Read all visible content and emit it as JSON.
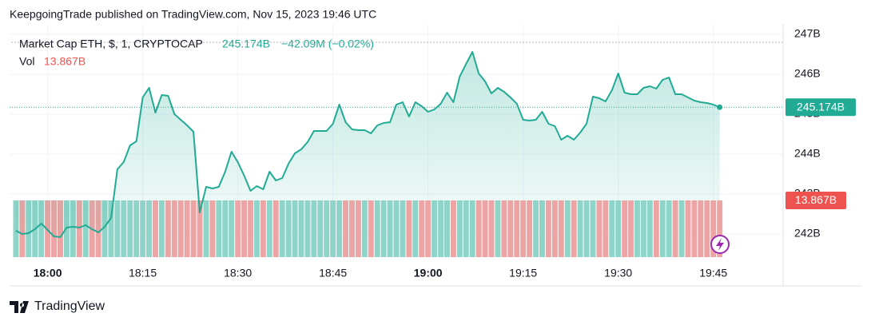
{
  "header": "KeepgoingTrade published on TradingView.com, Nov 15, 2023 19:46 UTC",
  "footer": "TradingView",
  "chart_data": {
    "type": "area",
    "title": "Market Cap ETH, $, 1, CRYPTOCAP",
    "last_label": "245.174B",
    "change_label": "−42.09M (−0.02%)",
    "color": "#22ab94",
    "grid": true,
    "x": [
      "17:55",
      "17:56",
      "17:57",
      "17:58",
      "17:59",
      "18:00",
      "18:01",
      "18:02",
      "18:03",
      "18:04",
      "18:05",
      "18:06",
      "18:07",
      "18:08",
      "18:09",
      "18:10",
      "18:11",
      "18:12",
      "18:13",
      "18:14",
      "18:15",
      "18:16",
      "18:17",
      "18:18",
      "18:19",
      "18:20",
      "18:21",
      "18:22",
      "18:23",
      "18:24",
      "18:25",
      "18:26",
      "18:27",
      "18:28",
      "18:29",
      "18:30",
      "18:31",
      "18:32",
      "18:33",
      "18:34",
      "18:35",
      "18:36",
      "18:37",
      "18:38",
      "18:39",
      "18:40",
      "18:41",
      "18:42",
      "18:43",
      "18:44",
      "18:45",
      "18:46",
      "18:47",
      "18:48",
      "18:49",
      "18:50",
      "18:51",
      "18:52",
      "18:53",
      "18:54",
      "18:55",
      "18:56",
      "18:57",
      "18:58",
      "18:59",
      "19:00",
      "19:01",
      "19:02",
      "19:03",
      "19:04",
      "19:05",
      "19:06",
      "19:07",
      "19:08",
      "19:09",
      "19:10",
      "19:11",
      "19:12",
      "19:13",
      "19:14",
      "19:15",
      "19:16",
      "19:17",
      "19:18",
      "19:19",
      "19:20",
      "19:21",
      "19:22",
      "19:23",
      "19:24",
      "19:25",
      "19:26",
      "19:27",
      "19:28",
      "19:29",
      "19:30",
      "19:31",
      "19:32",
      "19:33",
      "19:34",
      "19:35",
      "19:36",
      "19:37",
      "19:38",
      "19:39",
      "19:40",
      "19:41",
      "19:42",
      "19:43",
      "19:44",
      "19:45",
      "19:46"
    ],
    "values": [
      242.08,
      242.0,
      242.02,
      242.12,
      242.26,
      242.1,
      241.94,
      241.92,
      242.16,
      242.18,
      242.16,
      242.22,
      242.12,
      242.04,
      242.18,
      242.4,
      243.62,
      243.8,
      244.22,
      244.32,
      245.42,
      245.66,
      245.04,
      245.48,
      245.46,
      245.0,
      244.86,
      244.72,
      244.56,
      242.54,
      243.18,
      243.14,
      243.18,
      243.56,
      244.06,
      243.8,
      243.46,
      243.08,
      243.2,
      243.12,
      243.56,
      243.34,
      243.4,
      243.76,
      244.02,
      244.12,
      244.3,
      244.58,
      244.58,
      244.58,
      244.76,
      245.24,
      244.8,
      244.62,
      244.6,
      244.6,
      244.52,
      244.72,
      244.78,
      244.8,
      245.24,
      245.3,
      244.94,
      245.3,
      245.2,
      245.06,
      245.12,
      245.26,
      245.54,
      245.3,
      245.94,
      246.26,
      246.56,
      246.02,
      245.82,
      245.52,
      245.66,
      245.56,
      245.42,
      245.26,
      244.86,
      244.84,
      244.86,
      245.06,
      244.76,
      244.7,
      244.36,
      244.46,
      244.36,
      244.54,
      244.76,
      245.44,
      245.4,
      245.32,
      245.6,
      246.02,
      245.54,
      245.5,
      245.5,
      245.66,
      245.7,
      245.64,
      245.86,
      245.92,
      245.5,
      245.5,
      245.42,
      245.34,
      245.3,
      245.28,
      245.24,
      245.174
    ],
    "xlim": [
      "17:54",
      "19:56"
    ],
    "xticks": [
      "18:00",
      "18:15",
      "18:30",
      "18:45",
      "19:00",
      "19:15",
      "19:30",
      "19:45"
    ],
    "ylim": [
      241.42,
      247.26
    ],
    "yticks": [
      {
        "value": 242,
        "label": "242B"
      },
      {
        "value": 243,
        "label": "243B"
      },
      {
        "value": 244,
        "label": "244B"
      },
      {
        "value": 245,
        "label": "245B"
      },
      {
        "value": 246,
        "label": "246B"
      },
      {
        "value": 247,
        "label": "247B"
      }
    ],
    "volume": {
      "name": "Vol",
      "value_label": "13.867B",
      "up_color": "#8fd4c8",
      "down_color": "#eda4a4",
      "label_color": "#ef5350",
      "values": [
        13.87,
        13.87,
        13.87,
        13.87,
        13.87,
        13.87,
        13.87,
        13.87,
        13.87,
        13.87,
        13.87,
        13.87,
        13.87,
        13.87,
        13.87,
        13.87,
        13.87,
        13.87,
        13.87,
        13.87,
        13.87,
        13.87,
        13.87,
        13.87,
        13.87,
        13.87,
        13.87,
        13.87,
        13.87,
        13.87,
        13.87,
        13.87,
        13.87,
        13.87,
        13.87,
        13.87,
        13.87,
        13.87,
        13.87,
        13.87,
        13.87,
        13.87,
        13.87,
        13.87,
        13.87,
        13.87,
        13.87,
        13.87,
        13.87,
        13.87,
        13.87,
        13.87,
        13.87,
        13.87,
        13.87,
        13.87,
        13.87,
        13.87,
        13.87,
        13.87,
        13.87,
        13.87,
        13.87,
        13.87,
        13.87,
        13.87,
        13.87,
        13.87,
        13.87,
        13.87,
        13.87,
        13.87,
        13.87,
        13.87,
        13.87,
        13.87,
        13.87,
        13.87,
        13.87,
        13.87,
        13.87,
        13.87,
        13.87,
        13.87,
        13.87,
        13.87,
        13.87,
        13.87,
        13.87,
        13.87,
        13.87,
        13.87,
        13.87,
        13.87,
        13.87,
        13.87,
        13.87,
        13.87,
        13.87,
        13.87,
        13.87,
        13.87,
        13.87,
        13.87,
        13.87,
        13.87,
        13.87,
        13.87,
        13.87,
        13.87,
        13.87,
        13.867
      ]
    }
  }
}
